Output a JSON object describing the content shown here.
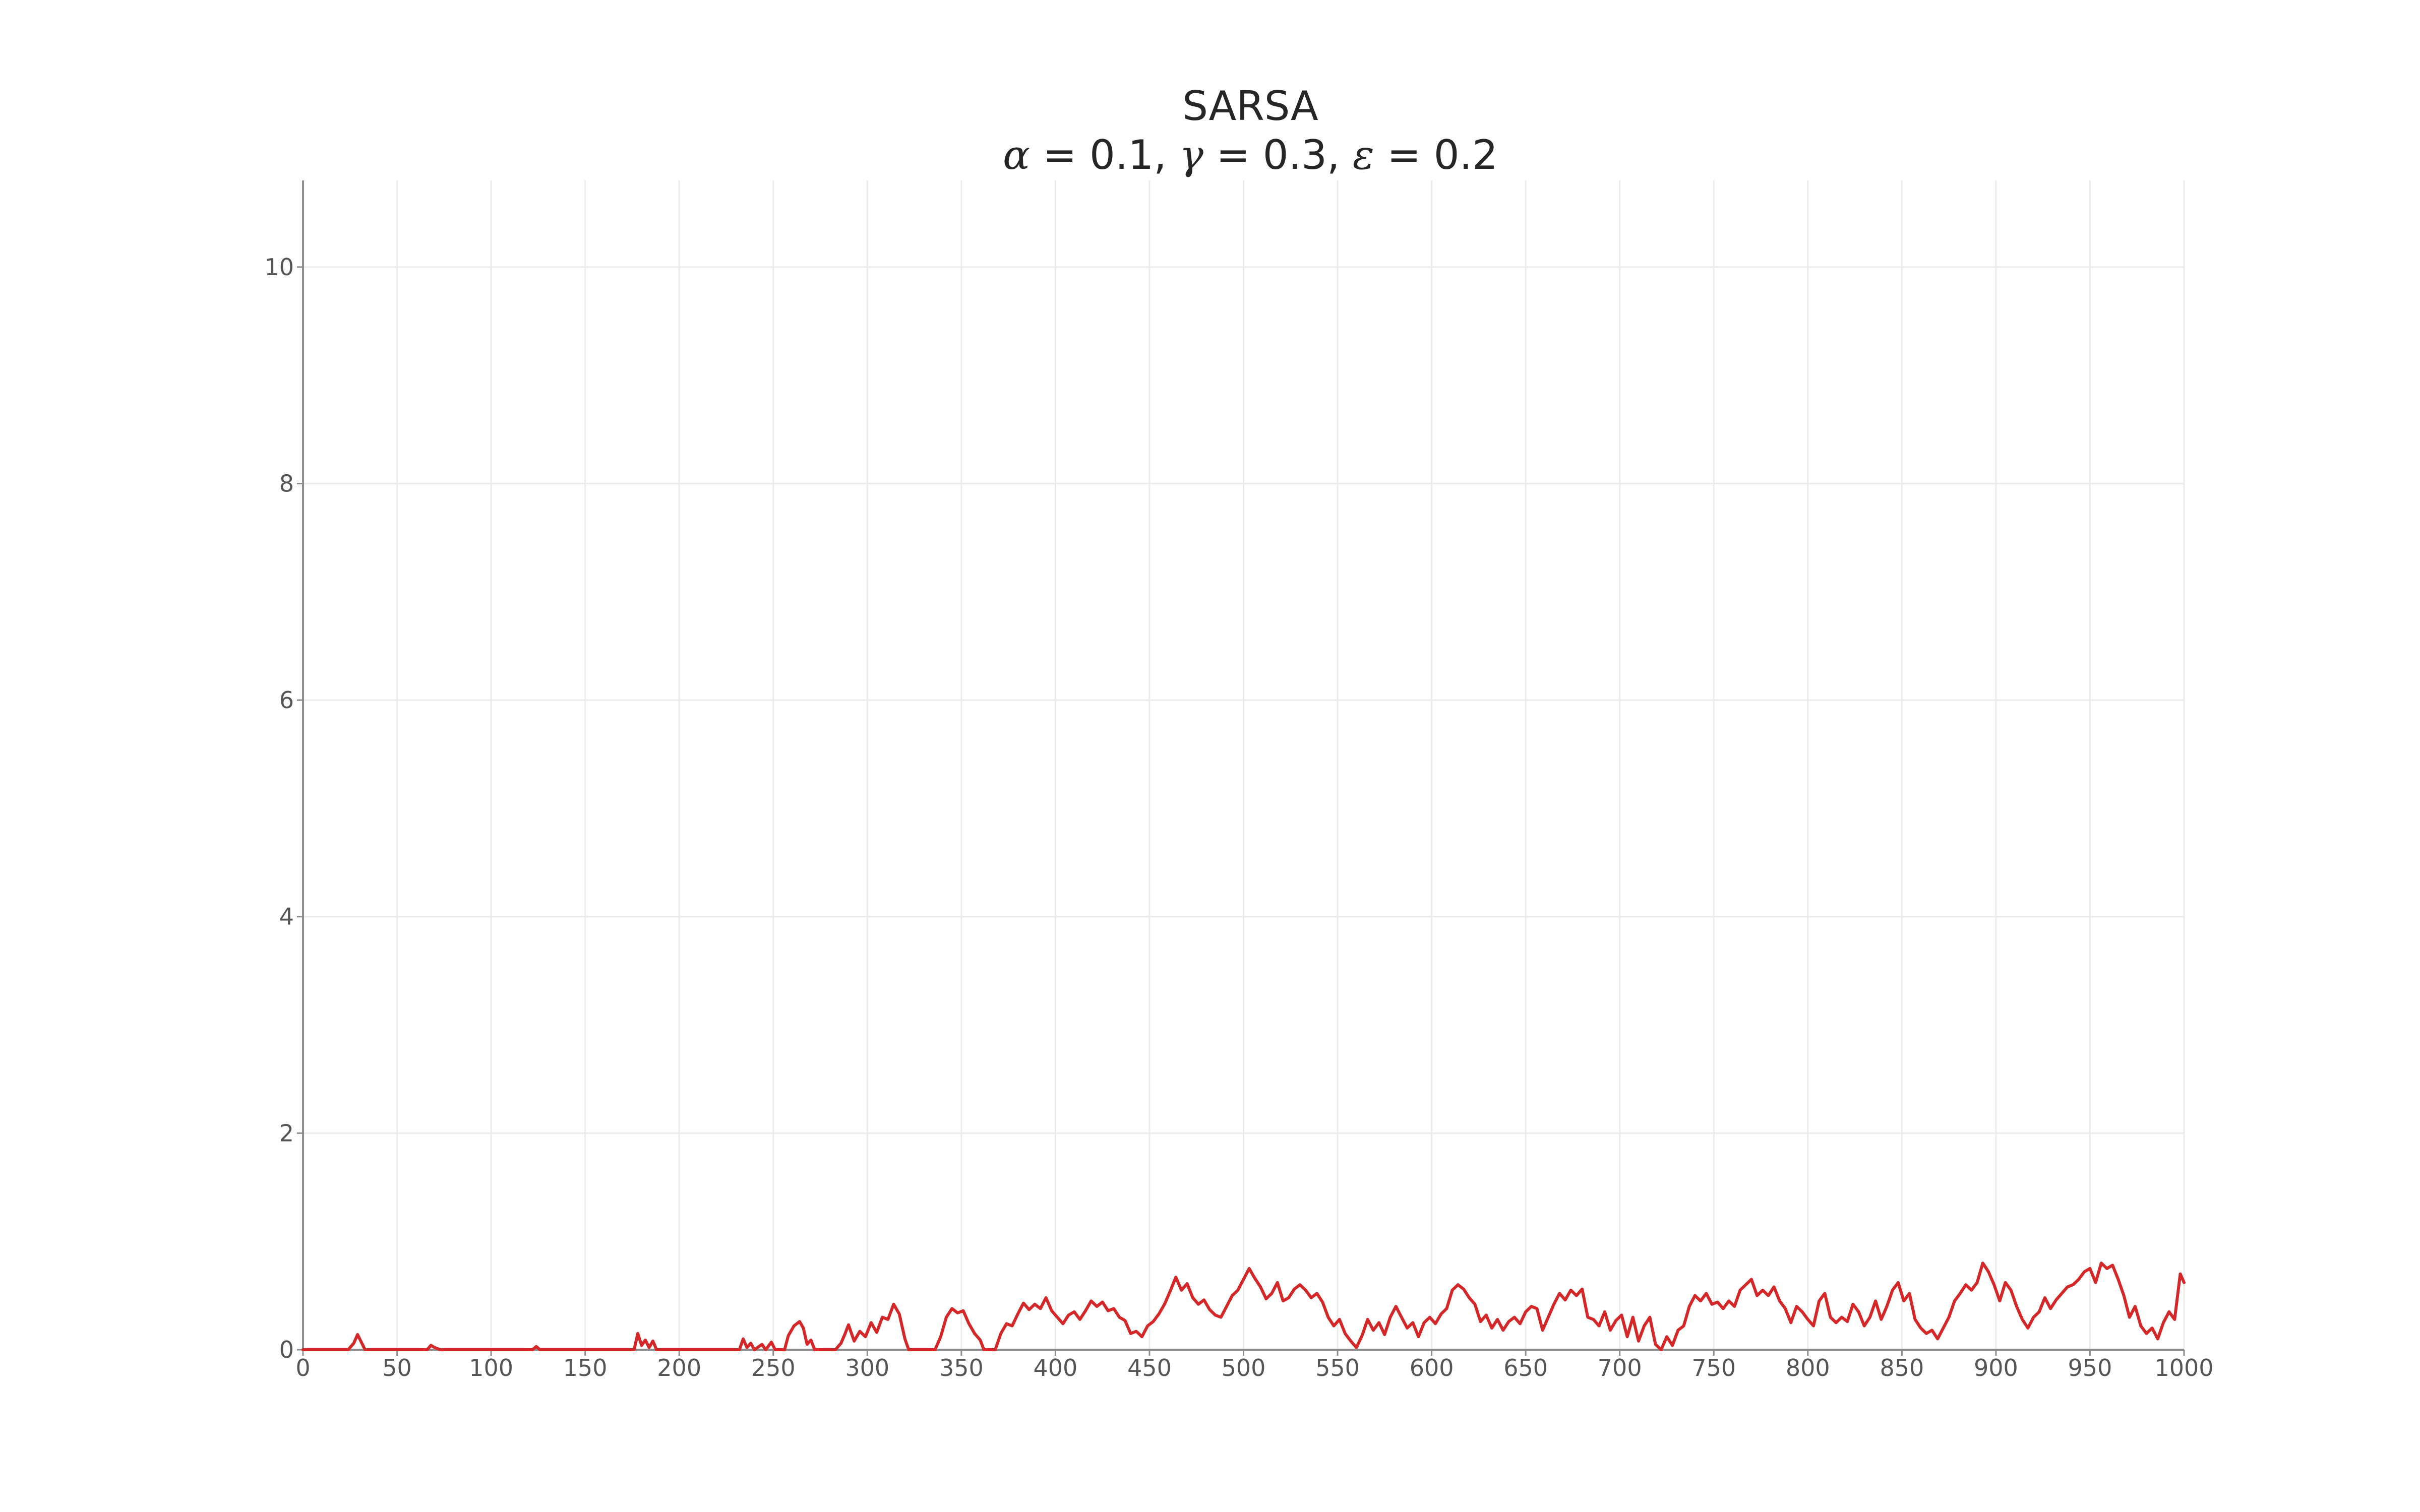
{
  "chart_data": {
    "type": "line",
    "title": "SARSA",
    "subtitle": {
      "alpha_symbol": "α",
      "alpha_value": "0.1",
      "gamma_symbol": "γ",
      "gamma_value": "0.3",
      "epsilon_symbol": "ε",
      "epsilon_value": "0.2"
    },
    "xlabel": "",
    "ylabel": "",
    "xlim": [
      0,
      1000
    ],
    "ylim": [
      0,
      10.8
    ],
    "x_ticks": [
      0,
      50,
      100,
      150,
      200,
      250,
      300,
      350,
      400,
      450,
      500,
      550,
      600,
      650,
      700,
      750,
      800,
      850,
      900,
      950,
      1000
    ],
    "y_ticks": [
      0,
      2,
      4,
      6,
      8,
      10
    ],
    "grid": true,
    "legend": "none",
    "series": [
      {
        "color": "#d62728",
        "points": [
          [
            0,
            0
          ],
          [
            24,
            0
          ],
          [
            27,
            0.06
          ],
          [
            29,
            0.14
          ],
          [
            31,
            0.07
          ],
          [
            33,
            0
          ],
          [
            66,
            0
          ],
          [
            68,
            0.04
          ],
          [
            70,
            0.02
          ],
          [
            73,
            0
          ],
          [
            122,
            0
          ],
          [
            124,
            0.03
          ],
          [
            126,
            0
          ],
          [
            176,
            0
          ],
          [
            178,
            0.15
          ],
          [
            180,
            0.04
          ],
          [
            182,
            0.09
          ],
          [
            184,
            0.02
          ],
          [
            186,
            0.08
          ],
          [
            188,
            0
          ],
          [
            232,
            0
          ],
          [
            234,
            0.1
          ],
          [
            236,
            0.02
          ],
          [
            238,
            0.06
          ],
          [
            240,
            0
          ],
          [
            244,
            0.05
          ],
          [
            246,
            0
          ],
          [
            249,
            0.07
          ],
          [
            251,
            0
          ],
          [
            256,
            0
          ],
          [
            258,
            0.13
          ],
          [
            261,
            0.22
          ],
          [
            264,
            0.26
          ],
          [
            266,
            0.2
          ],
          [
            268,
            0.05
          ],
          [
            270,
            0.09
          ],
          [
            272,
            0
          ],
          [
            283,
            0
          ],
          [
            286,
            0.06
          ],
          [
            288,
            0.14
          ],
          [
            290,
            0.23
          ],
          [
            293,
            0.08
          ],
          [
            296,
            0.17
          ],
          [
            299,
            0.12
          ],
          [
            302,
            0.25
          ],
          [
            305,
            0.16
          ],
          [
            308,
            0.3
          ],
          [
            311,
            0.28
          ],
          [
            314,
            0.42
          ],
          [
            317,
            0.33
          ],
          [
            320,
            0.1
          ],
          [
            322,
            0
          ],
          [
            336,
            0
          ],
          [
            339,
            0.12
          ],
          [
            342,
            0.3
          ],
          [
            345,
            0.38
          ],
          [
            348,
            0.34
          ],
          [
            351,
            0.36
          ],
          [
            354,
            0.24
          ],
          [
            357,
            0.15
          ],
          [
            360,
            0.09
          ],
          [
            362,
            0
          ],
          [
            368,
            0
          ],
          [
            371,
            0.15
          ],
          [
            374,
            0.24
          ],
          [
            377,
            0.22
          ],
          [
            380,
            0.33
          ],
          [
            383,
            0.43
          ],
          [
            386,
            0.37
          ],
          [
            389,
            0.42
          ],
          [
            392,
            0.38
          ],
          [
            395,
            0.48
          ],
          [
            398,
            0.36
          ],
          [
            401,
            0.3
          ],
          [
            404,
            0.24
          ],
          [
            407,
            0.32
          ],
          [
            410,
            0.35
          ],
          [
            413,
            0.28
          ],
          [
            416,
            0.36
          ],
          [
            419,
            0.45
          ],
          [
            422,
            0.4
          ],
          [
            425,
            0.44
          ],
          [
            428,
            0.36
          ],
          [
            431,
            0.38
          ],
          [
            434,
            0.3
          ],
          [
            437,
            0.27
          ],
          [
            440,
            0.15
          ],
          [
            443,
            0.17
          ],
          [
            446,
            0.12
          ],
          [
            449,
            0.22
          ],
          [
            452,
            0.26
          ],
          [
            455,
            0.33
          ],
          [
            458,
            0.42
          ],
          [
            461,
            0.54
          ],
          [
            464,
            0.67
          ],
          [
            467,
            0.55
          ],
          [
            470,
            0.61
          ],
          [
            473,
            0.48
          ],
          [
            476,
            0.42
          ],
          [
            479,
            0.46
          ],
          [
            482,
            0.37
          ],
          [
            485,
            0.32
          ],
          [
            488,
            0.3
          ],
          [
            491,
            0.4
          ],
          [
            494,
            0.5
          ],
          [
            497,
            0.55
          ],
          [
            500,
            0.65
          ],
          [
            503,
            0.75
          ],
          [
            506,
            0.66
          ],
          [
            509,
            0.58
          ],
          [
            512,
            0.47
          ],
          [
            515,
            0.52
          ],
          [
            518,
            0.62
          ],
          [
            521,
            0.45
          ],
          [
            524,
            0.48
          ],
          [
            527,
            0.56
          ],
          [
            530,
            0.6
          ],
          [
            533,
            0.55
          ],
          [
            536,
            0.48
          ],
          [
            539,
            0.52
          ],
          [
            542,
            0.44
          ],
          [
            545,
            0.3
          ],
          [
            548,
            0.22
          ],
          [
            551,
            0.28
          ],
          [
            554,
            0.15
          ],
          [
            557,
            0.08
          ],
          [
            560,
            0.02
          ],
          [
            563,
            0.13
          ],
          [
            566,
            0.28
          ],
          [
            569,
            0.18
          ],
          [
            572,
            0.25
          ],
          [
            575,
            0.14
          ],
          [
            578,
            0.3
          ],
          [
            581,
            0.4
          ],
          [
            584,
            0.3
          ],
          [
            587,
            0.2
          ],
          [
            590,
            0.25
          ],
          [
            593,
            0.12
          ],
          [
            596,
            0.25
          ],
          [
            599,
            0.3
          ],
          [
            602,
            0.24
          ],
          [
            605,
            0.33
          ],
          [
            608,
            0.38
          ],
          [
            611,
            0.55
          ],
          [
            614,
            0.6
          ],
          [
            617,
            0.56
          ],
          [
            620,
            0.48
          ],
          [
            623,
            0.42
          ],
          [
            626,
            0.26
          ],
          [
            629,
            0.32
          ],
          [
            632,
            0.2
          ],
          [
            635,
            0.28
          ],
          [
            638,
            0.18
          ],
          [
            641,
            0.26
          ],
          [
            644,
            0.3
          ],
          [
            647,
            0.24
          ],
          [
            650,
            0.35
          ],
          [
            653,
            0.4
          ],
          [
            656,
            0.38
          ],
          [
            659,
            0.18
          ],
          [
            662,
            0.3
          ],
          [
            665,
            0.42
          ],
          [
            668,
            0.52
          ],
          [
            671,
            0.46
          ],
          [
            674,
            0.55
          ],
          [
            677,
            0.5
          ],
          [
            680,
            0.56
          ],
          [
            683,
            0.3
          ],
          [
            686,
            0.28
          ],
          [
            689,
            0.22
          ],
          [
            692,
            0.35
          ],
          [
            695,
            0.18
          ],
          [
            698,
            0.27
          ],
          [
            701,
            0.32
          ],
          [
            704,
            0.12
          ],
          [
            707,
            0.3
          ],
          [
            710,
            0.08
          ],
          [
            713,
            0.22
          ],
          [
            716,
            0.3
          ],
          [
            719,
            0.05
          ],
          [
            722,
            0
          ],
          [
            725,
            0.12
          ],
          [
            728,
            0.04
          ],
          [
            731,
            0.18
          ],
          [
            734,
            0.22
          ],
          [
            737,
            0.4
          ],
          [
            740,
            0.5
          ],
          [
            743,
            0.45
          ],
          [
            746,
            0.52
          ],
          [
            749,
            0.42
          ],
          [
            752,
            0.44
          ],
          [
            755,
            0.38
          ],
          [
            758,
            0.45
          ],
          [
            761,
            0.4
          ],
          [
            764,
            0.55
          ],
          [
            767,
            0.6
          ],
          [
            770,
            0.65
          ],
          [
            773,
            0.5
          ],
          [
            776,
            0.55
          ],
          [
            779,
            0.5
          ],
          [
            782,
            0.58
          ],
          [
            785,
            0.45
          ],
          [
            788,
            0.38
          ],
          [
            791,
            0.25
          ],
          [
            794,
            0.4
          ],
          [
            797,
            0.35
          ],
          [
            800,
            0.28
          ],
          [
            803,
            0.22
          ],
          [
            806,
            0.45
          ],
          [
            809,
            0.52
          ],
          [
            812,
            0.3
          ],
          [
            815,
            0.25
          ],
          [
            818,
            0.3
          ],
          [
            821,
            0.26
          ],
          [
            824,
            0.42
          ],
          [
            827,
            0.35
          ],
          [
            830,
            0.22
          ],
          [
            833,
            0.3
          ],
          [
            836,
            0.45
          ],
          [
            839,
            0.28
          ],
          [
            842,
            0.4
          ],
          [
            845,
            0.55
          ],
          [
            848,
            0.62
          ],
          [
            851,
            0.45
          ],
          [
            854,
            0.52
          ],
          [
            857,
            0.28
          ],
          [
            860,
            0.2
          ],
          [
            863,
            0.15
          ],
          [
            866,
            0.18
          ],
          [
            869,
            0.1
          ],
          [
            872,
            0.2
          ],
          [
            875,
            0.3
          ],
          [
            878,
            0.45
          ],
          [
            881,
            0.52
          ],
          [
            884,
            0.6
          ],
          [
            887,
            0.55
          ],
          [
            890,
            0.62
          ],
          [
            893,
            0.8
          ],
          [
            896,
            0.72
          ],
          [
            899,
            0.6
          ],
          [
            902,
            0.45
          ],
          [
            905,
            0.62
          ],
          [
            908,
            0.55
          ],
          [
            911,
            0.4
          ],
          [
            914,
            0.28
          ],
          [
            917,
            0.2
          ],
          [
            920,
            0.3
          ],
          [
            923,
            0.35
          ],
          [
            926,
            0.48
          ],
          [
            929,
            0.38
          ],
          [
            932,
            0.46
          ],
          [
            935,
            0.52
          ],
          [
            938,
            0.58
          ],
          [
            941,
            0.6
          ],
          [
            944,
            0.65
          ],
          [
            947,
            0.72
          ],
          [
            950,
            0.75
          ],
          [
            953,
            0.62
          ],
          [
            956,
            0.8
          ],
          [
            959,
            0.75
          ],
          [
            962,
            0.78
          ],
          [
            965,
            0.65
          ],
          [
            968,
            0.5
          ],
          [
            971,
            0.3
          ],
          [
            974,
            0.4
          ],
          [
            977,
            0.22
          ],
          [
            980,
            0.15
          ],
          [
            983,
            0.2
          ],
          [
            986,
            0.1
          ],
          [
            989,
            0.25
          ],
          [
            992,
            0.35
          ],
          [
            995,
            0.28
          ],
          [
            998,
            0.7
          ],
          [
            1000,
            0.62
          ]
        ]
      }
    ]
  }
}
